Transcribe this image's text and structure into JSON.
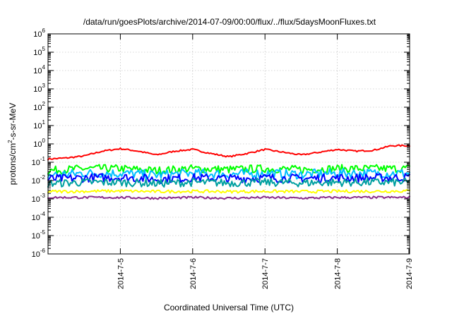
{
  "chart_data": {
    "type": "line",
    "title": "/data/run/goesPlots/archive/2014-07-09/00:00/flux/../flux/5daysMoonFluxes.txt",
    "xlabel": "Coordinated Universal Time (UTC)",
    "ylabel": {
      "base": "protons/cm",
      "sup": "2",
      "rest": "-s-sr-MeV"
    },
    "yscale": "log",
    "ylim_exponents": [
      -6,
      6
    ],
    "ytick_labels": [
      {
        "base": "10",
        "exp": "-6"
      },
      {
        "base": "10",
        "exp": "-5"
      },
      {
        "base": "10",
        "exp": "-4"
      },
      {
        "base": "10",
        "exp": "-3"
      },
      {
        "base": "10",
        "exp": "-2"
      },
      {
        "base": "10",
        "exp": "-1"
      },
      {
        "base": "10",
        "exp": "0"
      },
      {
        "base": "10",
        "exp": "1"
      },
      {
        "base": "10",
        "exp": "2"
      },
      {
        "base": "10",
        "exp": "3"
      },
      {
        "base": "10",
        "exp": "4"
      },
      {
        "base": "10",
        "exp": "5"
      },
      {
        "base": "10",
        "exp": "6"
      }
    ],
    "xlim": [
      "2014-07-04T00:00",
      "2014-07-09T00:00"
    ],
    "xtick_labels": [
      "2014-7-5",
      "2014-7-6",
      "2014-7-7",
      "2014-7-8",
      "2014-7-9"
    ],
    "grid": true,
    "series": [
      {
        "color": "#ff0000",
        "points": [
          [
            "2014-07-04T00:00",
            0.15
          ],
          [
            "2014-07-04T06:00",
            0.17
          ],
          [
            "2014-07-04T12:00",
            0.22
          ],
          [
            "2014-07-04T18:00",
            0.4
          ],
          [
            "2014-07-05T00:00",
            0.55
          ],
          [
            "2014-07-05T06:00",
            0.4
          ],
          [
            "2014-07-05T12:00",
            0.25
          ],
          [
            "2014-07-05T18:00",
            0.4
          ],
          [
            "2014-07-06T00:00",
            0.5
          ],
          [
            "2014-07-06T06:00",
            0.3
          ],
          [
            "2014-07-06T12:00",
            0.2
          ],
          [
            "2014-07-06T18:00",
            0.3
          ],
          [
            "2014-07-07T00:00",
            0.5
          ],
          [
            "2014-07-07T06:00",
            0.35
          ],
          [
            "2014-07-07T12:00",
            0.25
          ],
          [
            "2014-07-07T18:00",
            0.35
          ],
          [
            "2014-07-08T00:00",
            0.5
          ],
          [
            "2014-07-08T06:00",
            0.4
          ],
          [
            "2014-07-08T12:00",
            0.45
          ],
          [
            "2014-07-08T18:00",
            0.8
          ],
          [
            "2014-07-09T00:00",
            0.8
          ]
        ]
      },
      {
        "color": "#00ff00",
        "points": [
          [
            "2014-07-04T00:00",
            0.035
          ],
          [
            "2014-07-04T12:00",
            0.045
          ],
          [
            "2014-07-05T00:00",
            0.045
          ],
          [
            "2014-07-05T12:00",
            0.035
          ],
          [
            "2014-07-06T00:00",
            0.045
          ],
          [
            "2014-07-06T12:00",
            0.04
          ],
          [
            "2014-07-07T00:00",
            0.045
          ],
          [
            "2014-07-07T12:00",
            0.04
          ],
          [
            "2014-07-08T00:00",
            0.045
          ],
          [
            "2014-07-08T12:00",
            0.045
          ],
          [
            "2014-07-09T00:00",
            0.045
          ]
        ]
      },
      {
        "color": "#00bfff",
        "points": [
          [
            "2014-07-04T00:00",
            0.02
          ],
          [
            "2014-07-04T12:00",
            0.025
          ],
          [
            "2014-07-05T00:00",
            0.025
          ],
          [
            "2014-07-05T12:00",
            0.02
          ],
          [
            "2014-07-06T00:00",
            0.025
          ],
          [
            "2014-07-06T12:00",
            0.022
          ],
          [
            "2014-07-07T00:00",
            0.025
          ],
          [
            "2014-07-07T12:00",
            0.022
          ],
          [
            "2014-07-08T00:00",
            0.025
          ],
          [
            "2014-07-08T12:00",
            0.025
          ],
          [
            "2014-07-09T00:00",
            0.025
          ]
        ]
      },
      {
        "color": "#0000ff",
        "points": [
          [
            "2014-07-04T00:00",
            0.012
          ],
          [
            "2014-07-04T12:00",
            0.014
          ],
          [
            "2014-07-05T00:00",
            0.015
          ],
          [
            "2014-07-05T12:00",
            0.012
          ],
          [
            "2014-07-06T00:00",
            0.014
          ],
          [
            "2014-07-06T12:00",
            0.013
          ],
          [
            "2014-07-07T00:00",
            0.014
          ],
          [
            "2014-07-07T12:00",
            0.013
          ],
          [
            "2014-07-08T00:00",
            0.014
          ],
          [
            "2014-07-08T12:00",
            0.014
          ],
          [
            "2014-07-09T00:00",
            0.015
          ]
        ]
      },
      {
        "color": "#00a0a0",
        "points": [
          [
            "2014-07-04T00:00",
            0.007
          ],
          [
            "2014-07-04T12:00",
            0.008
          ],
          [
            "2014-07-05T00:00",
            0.008
          ],
          [
            "2014-07-05T12:00",
            0.007
          ],
          [
            "2014-07-06T00:00",
            0.008
          ],
          [
            "2014-07-06T12:00",
            0.0075
          ],
          [
            "2014-07-07T00:00",
            0.008
          ],
          [
            "2014-07-07T12:00",
            0.0075
          ],
          [
            "2014-07-08T00:00",
            0.008
          ],
          [
            "2014-07-08T12:00",
            0.008
          ],
          [
            "2014-07-09T00:00",
            0.008
          ]
        ]
      },
      {
        "color": "#ffff00",
        "points": [
          [
            "2014-07-04T00:00",
            0.0025
          ],
          [
            "2014-07-04T12:00",
            0.0026
          ],
          [
            "2014-07-05T00:00",
            0.0027
          ],
          [
            "2014-07-05T12:00",
            0.0025
          ],
          [
            "2014-07-06T00:00",
            0.0026
          ],
          [
            "2014-07-06T12:00",
            0.0025
          ],
          [
            "2014-07-07T00:00",
            0.0026
          ],
          [
            "2014-07-07T12:00",
            0.0025
          ],
          [
            "2014-07-08T00:00",
            0.0026
          ],
          [
            "2014-07-08T12:00",
            0.0026
          ],
          [
            "2014-07-09T00:00",
            0.0027
          ]
        ]
      },
      {
        "color": "#8b2c8b",
        "points": [
          [
            "2014-07-04T00:00",
            0.0012
          ],
          [
            "2014-07-04T12:00",
            0.0012
          ],
          [
            "2014-07-05T00:00",
            0.0012
          ],
          [
            "2014-07-05T12:00",
            0.0011
          ],
          [
            "2014-07-06T00:00",
            0.0012
          ],
          [
            "2014-07-06T12:00",
            0.0011
          ],
          [
            "2014-07-07T00:00",
            0.0012
          ],
          [
            "2014-07-07T12:00",
            0.0011
          ],
          [
            "2014-07-08T00:00",
            0.0012
          ],
          [
            "2014-07-08T12:00",
            0.0012
          ],
          [
            "2014-07-09T00:00",
            0.0012
          ]
        ]
      }
    ]
  }
}
